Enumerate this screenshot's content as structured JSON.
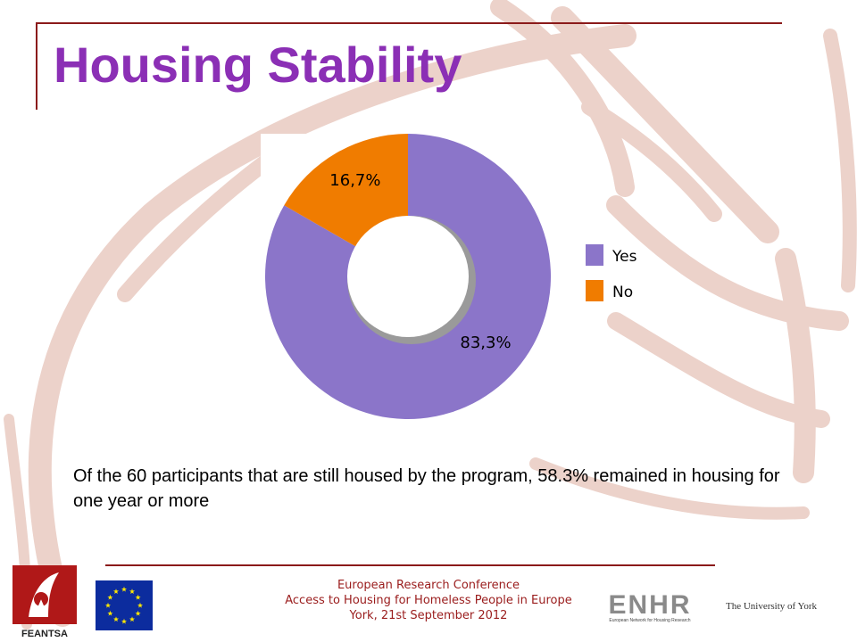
{
  "slide": {
    "title": "Housing Stability",
    "caption": "Of the 60 participants that are still housed by the program,  58.3% remained in housing for one year or more"
  },
  "chart_data": {
    "type": "pie",
    "style": "donut",
    "title": "",
    "series": [
      {
        "name": "Yes",
        "value": 83.3,
        "label": "83,3%",
        "color": "#8b75c9"
      },
      {
        "name": "No",
        "value": 16.7,
        "label": "16,7%",
        "color": "#f07c00"
      }
    ],
    "legend": {
      "position": "right",
      "entries": [
        "Yes",
        "No"
      ]
    }
  },
  "footer": {
    "line1": "European Research Conference",
    "line2": "Access to Housing for Homeless People in Europe",
    "line3": "York, 21st September 2012"
  },
  "logos": {
    "feantsa": "FEANTSA",
    "enhr_main": "ENHR",
    "enhr_sub": "European Network for Housing Research",
    "york": "The University of York"
  },
  "colors": {
    "title": "#8b2fb5",
    "rules": "#8b1a1a",
    "footer_text": "#9a1c1c",
    "background_motif": "#e8c9c0"
  }
}
